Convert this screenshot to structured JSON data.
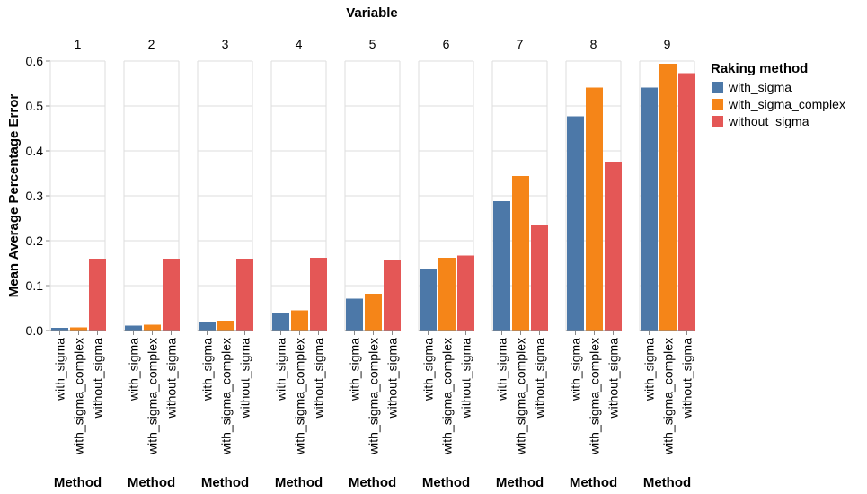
{
  "chart_data": {
    "type": "bar",
    "title": "Variable",
    "facets": [
      "1",
      "2",
      "3",
      "4",
      "5",
      "6",
      "7",
      "8",
      "9"
    ],
    "categories": [
      "with_sigma",
      "with_sigma_complex",
      "without_sigma"
    ],
    "xlabel": "Method",
    "ylabel": "Mean Average Percentage Error",
    "ylim": [
      0,
      0.6
    ],
    "yticks": [
      "0.0",
      "0.1",
      "0.2",
      "0.3",
      "0.4",
      "0.5",
      "0.6"
    ],
    "grid": true,
    "legend": {
      "title": "Raking method",
      "placement": "right",
      "entries": [
        {
          "label": "with_sigma",
          "color": "#4c78a8"
        },
        {
          "label": "with_sigma_complex",
          "color": "#f58518"
        },
        {
          "label": "without_sigma",
          "color": "#e45756"
        }
      ]
    },
    "values": [
      [
        0.006,
        0.007,
        0.16
      ],
      [
        0.011,
        0.013,
        0.16
      ],
      [
        0.02,
        0.022,
        0.16
      ],
      [
        0.039,
        0.045,
        0.162
      ],
      [
        0.071,
        0.082,
        0.158
      ],
      [
        0.138,
        0.162,
        0.167
      ],
      [
        0.288,
        0.344,
        0.236
      ],
      [
        0.477,
        0.541,
        0.376
      ],
      [
        0.541,
        0.594,
        0.573
      ]
    ]
  }
}
